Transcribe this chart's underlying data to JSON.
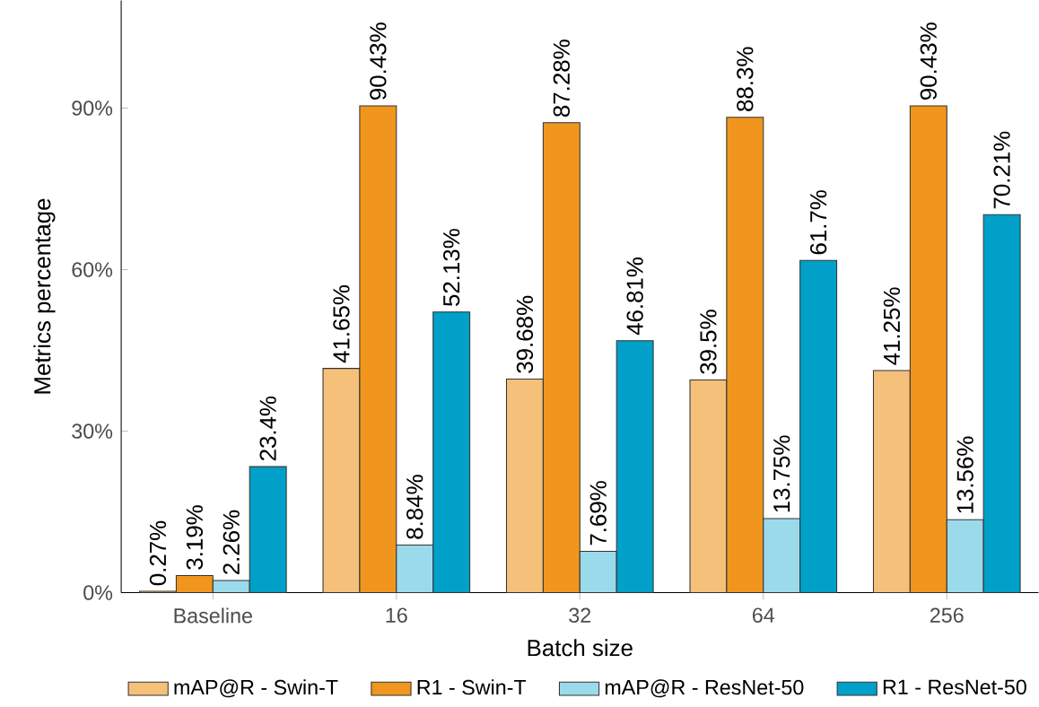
{
  "chart_data": {
    "type": "bar",
    "xlabel": "Batch size",
    "ylabel": "Metrics percentage",
    "categories": [
      "Baseline",
      "16",
      "32",
      "64",
      "256"
    ],
    "series": [
      {
        "name": "mAP@R - Swin-T",
        "color": "#f5c07a",
        "values": [
          0.27,
          41.65,
          39.68,
          39.5,
          41.25
        ],
        "value_labels": [
          "0.27%",
          "41.65%",
          "39.68%",
          "39.5%",
          "41.25%"
        ]
      },
      {
        "name": "R1 - Swin-T",
        "color": "#f0961e",
        "values": [
          3.19,
          90.43,
          87.28,
          88.3,
          90.43
        ],
        "value_labels": [
          "3.19%",
          "90.43%",
          "87.28%",
          "88.3%",
          "90.43%"
        ]
      },
      {
        "name": "mAP@R - ResNet-50",
        "color": "#9bdaeb",
        "values": [
          2.26,
          8.84,
          7.69,
          13.75,
          13.56
        ],
        "value_labels": [
          "2.26%",
          "8.84%",
          "7.69%",
          "13.75%",
          "13.56%"
        ]
      },
      {
        "name": "R1 - ResNet-50",
        "color": "#00a0c8",
        "values": [
          23.4,
          52.13,
          46.81,
          61.7,
          70.21
        ],
        "value_labels": [
          "23.4%",
          "52.13%",
          "46.81%",
          "61.7%",
          "70.21%"
        ]
      }
    ],
    "ylim": [
      0,
      110
    ],
    "yticks": [
      {
        "value": 0,
        "label": "0%"
      },
      {
        "value": 30,
        "label": "30%"
      },
      {
        "value": 60,
        "label": "60%"
      },
      {
        "value": 90,
        "label": "90%"
      }
    ],
    "grid": false,
    "legend": "bottom"
  }
}
